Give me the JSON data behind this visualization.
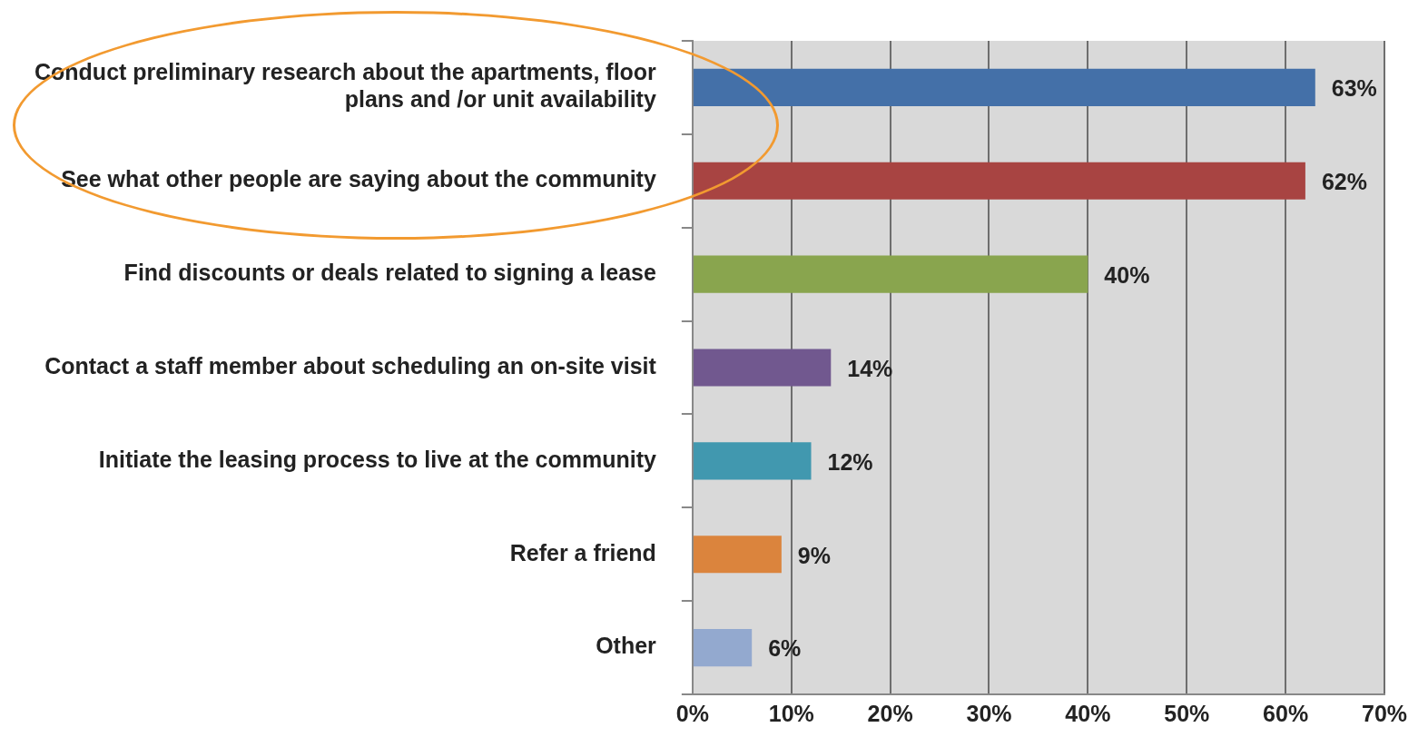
{
  "chart_data": {
    "type": "bar",
    "orientation": "horizontal",
    "categories": [
      "Conduct preliminary research about the apartments, floor plans and /or unit availability",
      "See what other people are saying about the community",
      "Find discounts or deals related to signing a lease",
      "Contact a staff member about scheduling an on-site visit",
      "Initiate the leasing process to live at the community",
      "Refer a friend",
      "Other"
    ],
    "values": [
      63,
      62,
      40,
      14,
      12,
      9,
      6
    ],
    "colors": [
      "#4470a8",
      "#a84442",
      "#89a54e",
      "#71588f",
      "#4198af",
      "#db843d",
      "#93a9cf"
    ],
    "value_labels": [
      "63%",
      "62%",
      "40%",
      "14%",
      "12%",
      "9%",
      "6%"
    ],
    "xlim": [
      0,
      70
    ],
    "xticks": [
      {
        "value": 0,
        "label": "0%"
      },
      {
        "value": 10,
        "label": "10%"
      },
      {
        "value": 20,
        "label": "20%"
      },
      {
        "value": 30,
        "label": "30%"
      },
      {
        "value": 40,
        "label": "40%"
      },
      {
        "value": 50,
        "label": "50%"
      },
      {
        "value": 60,
        "label": "60%"
      },
      {
        "value": 70,
        "label": "70%"
      }
    ],
    "grid": "x",
    "legend": false
  }
}
